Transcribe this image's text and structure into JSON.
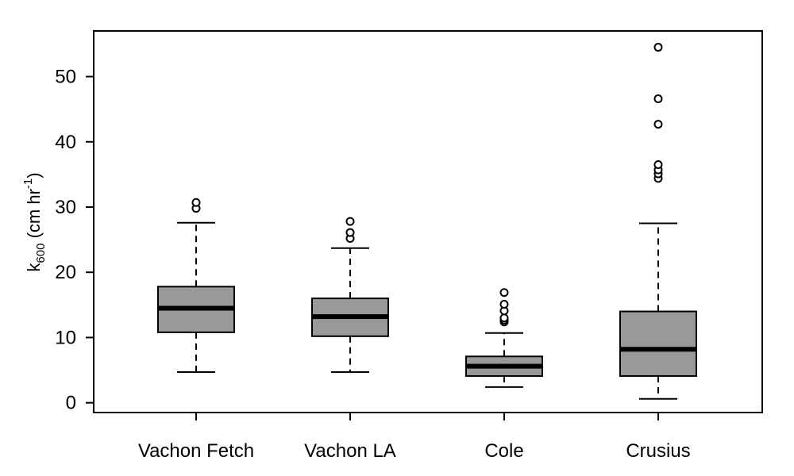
{
  "chart_data": {
    "type": "box",
    "ylabel": {
      "base": "k",
      "sub": "600",
      "mid": " (cm hr",
      "sup": "-1",
      "end": ")"
    },
    "ylim": [
      -1.5,
      57
    ],
    "yticks": [
      0,
      10,
      20,
      30,
      40,
      50
    ],
    "grid": false,
    "legend": "none",
    "box_color": "#999999",
    "series": [
      {
        "name": "Vachon Fetch",
        "whisker_low": 4.7,
        "q1": 10.8,
        "median": 14.5,
        "q3": 17.8,
        "whisker_high": 27.6,
        "outliers": [
          29.8,
          30.7
        ]
      },
      {
        "name": "Vachon LA",
        "whisker_low": 4.7,
        "q1": 10.2,
        "median": 13.2,
        "q3": 16.0,
        "whisker_high": 23.7,
        "outliers": [
          25.2,
          26.1,
          27.8
        ]
      },
      {
        "name": "Cole",
        "whisker_low": 2.4,
        "q1": 4.1,
        "median": 5.6,
        "q3": 7.1,
        "whisker_high": 10.7,
        "outliers": [
          12.4,
          12.7,
          13.0,
          14.1,
          15.1,
          16.9
        ]
      },
      {
        "name": "Crusius",
        "whisker_low": 0.6,
        "q1": 4.1,
        "median": 8.2,
        "q3": 14.0,
        "whisker_high": 27.5,
        "outliers": [
          34.4,
          35.1,
          35.7,
          36.5,
          42.7,
          46.6,
          54.5
        ]
      }
    ]
  }
}
